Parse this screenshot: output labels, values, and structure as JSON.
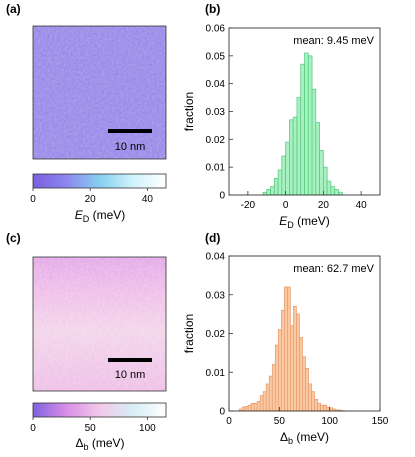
{
  "panels": {
    "a": {
      "label": "(a)",
      "scalebar_label": "10 nm",
      "colorbar_ticks": [
        "0",
        "20",
        "40"
      ],
      "colorbar_colors": [
        "#7a5fe0",
        "#8c86ee",
        "#86cff0",
        "#cef3fb",
        "#ffffff"
      ],
      "colorbar_label_main": "E",
      "colorbar_label_sub": "D",
      "colorbar_label_unit": " (meV)"
    },
    "c": {
      "label": "(c)",
      "scalebar_label": "10 nm",
      "colorbar_ticks": [
        "0",
        "50",
        "100"
      ],
      "colorbar_colors": [
        "#7f62de",
        "#d98ee8",
        "#f2c8ea",
        "#d6eef4",
        "#ffffff"
      ],
      "colorbar_label_main": "Δ",
      "colorbar_label_sub": "b",
      "colorbar_label_unit": " (meV)"
    },
    "b": {
      "label": "(b)"
    },
    "d": {
      "label": "(d)"
    }
  },
  "chart_data": [
    {
      "id": "b",
      "type": "bar",
      "annotation": "mean: 9.45 meV",
      "xlabel_main": "E",
      "xlabel_sub": "D",
      "xlabel_unit": " (meV)",
      "ylabel": "fraction",
      "xlim": [
        -30,
        50
      ],
      "ylim": [
        0,
        0.06
      ],
      "xticks": [
        -20,
        0,
        20,
        40
      ],
      "yticks": [
        0,
        0.01,
        0.02,
        0.03,
        0.04,
        0.05,
        0.06
      ],
      "ytick_labels": [
        "0",
        "0.01",
        "0.02",
        "0.03",
        "0.04",
        "0.05",
        "0.06"
      ],
      "bin_start": -12,
      "bin_width": 2,
      "values": [
        0.001,
        0.002,
        0.003,
        0.006,
        0.009,
        0.014,
        0.019,
        0.027,
        0.028,
        0.035,
        0.047,
        0.051,
        0.05,
        0.038,
        0.026,
        0.016,
        0.01,
        0.005,
        0.003,
        0.002,
        0.001
      ],
      "bar_fill": "#a8f0c0",
      "bar_stroke": "#4fc97c"
    },
    {
      "id": "d",
      "type": "bar",
      "annotation": "mean: 62.7 meV",
      "xlabel_main": "Δ",
      "xlabel_sub": "b",
      "xlabel_unit": " (meV)",
      "ylabel": "fraction",
      "xlim": [
        0,
        150
      ],
      "ylim": [
        0,
        0.04
      ],
      "xticks": [
        0,
        50,
        100,
        150
      ],
      "yticks": [
        0,
        0.01,
        0.02,
        0.03,
        0.04
      ],
      "ytick_labels": [
        "0",
        "0.01",
        "0.02",
        "0.03",
        "0.04"
      ],
      "bin_start": 10,
      "bin_width": 3,
      "values": [
        0.0005,
        0.001,
        0.0012,
        0.0015,
        0.002,
        0.002,
        0.0025,
        0.004,
        0.005,
        0.007,
        0.009,
        0.012,
        0.017,
        0.021,
        0.026,
        0.032,
        0.032,
        0.022,
        0.027,
        0.025,
        0.019,
        0.014,
        0.011,
        0.007,
        0.005,
        0.003,
        0.002,
        0.0015,
        0.0015,
        0.001,
        0.0008,
        0.0005,
        0.0003,
        0.0002,
        0.0001
      ],
      "bar_fill": "#f9c9a3",
      "bar_stroke": "#eb9a66"
    }
  ]
}
